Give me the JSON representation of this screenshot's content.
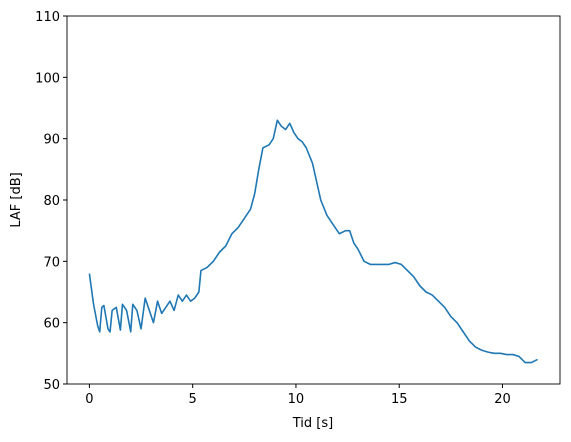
{
  "chart_data": {
    "type": "line",
    "xlabel": "Tid [s]",
    "ylabel": "LAF [dB]",
    "x": [
      0,
      0.2,
      0.4,
      0.5,
      0.6,
      0.7,
      0.9,
      1.0,
      1.1,
      1.3,
      1.5,
      1.6,
      1.8,
      2.0,
      2.1,
      2.3,
      2.5,
      2.7,
      2.9,
      3.1,
      3.3,
      3.5,
      3.7,
      3.9,
      4.1,
      4.3,
      4.5,
      4.7,
      4.9,
      5.1,
      5.3,
      5.4,
      5.7,
      6.0,
      6.3,
      6.6,
      6.9,
      7.2,
      7.5,
      7.8,
      8.0,
      8.2,
      8.4,
      8.7,
      8.9,
      9.1,
      9.3,
      9.5,
      9.7,
      9.9,
      10.1,
      10.3,
      10.5,
      10.8,
      11.0,
      11.2,
      11.5,
      11.8,
      12.1,
      12.4,
      12.6,
      12.8,
      13.0,
      13.3,
      13.6,
      13.9,
      14.2,
      14.5,
      14.8,
      15.1,
      15.4,
      15.7,
      16.0,
      16.3,
      16.6,
      16.9,
      17.2,
      17.5,
      17.8,
      18.1,
      18.4,
      18.7,
      19.0,
      19.3,
      19.6,
      19.9,
      20.2,
      20.5,
      20.8,
      21.1,
      21.4,
      21.7
    ],
    "series": [
      {
        "color": "#1f77b4",
        "values": [
          68,
          63,
          59.5,
          58.5,
          62.5,
          62.8,
          59,
          58.5,
          62,
          62.5,
          58.8,
          63,
          62,
          58.5,
          63,
          62,
          59,
          64,
          62,
          60,
          63.5,
          61.5,
          62.5,
          63.5,
          62,
          64.5,
          63.5,
          64.5,
          63.5,
          64,
          65,
          68.5,
          69,
          70,
          71.5,
          72.5,
          74.5,
          75.5,
          77,
          78.5,
          81,
          85,
          88.5,
          89,
          90,
          93,
          92,
          91.5,
          92.5,
          91,
          90,
          89.5,
          88.5,
          86,
          83,
          80,
          77.5,
          76,
          74.5,
          75,
          75,
          73,
          72,
          70,
          69.5,
          69.5,
          69.5,
          69.5,
          69.8,
          69.5,
          68.5,
          67.5,
          66,
          65,
          64.5,
          63.5,
          62.5,
          61,
          60,
          58.5,
          57,
          56,
          55.5,
          55.2,
          55,
          55,
          54.8,
          54.8,
          54.5,
          53.5,
          53.5,
          54
        ]
      }
    ],
    "xlim": [
      -1.085,
      22.785
    ],
    "ylim": [
      50,
      110
    ],
    "xticks": [
      0,
      5,
      10,
      15,
      20
    ],
    "yticks": [
      50,
      60,
      70,
      80,
      90,
      100,
      110
    ]
  }
}
